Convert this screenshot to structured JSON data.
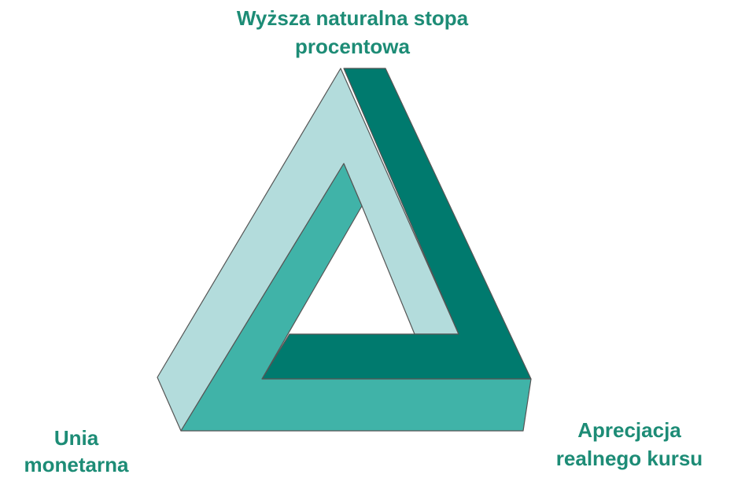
{
  "labels": {
    "top": [
      "Wyższa naturalna stopa",
      "procentowa"
    ],
    "bottom_left": [
      "Unia",
      "monetarna"
    ],
    "bottom_right": [
      "Aprecjacja",
      "realnego kursu"
    ]
  }
}
